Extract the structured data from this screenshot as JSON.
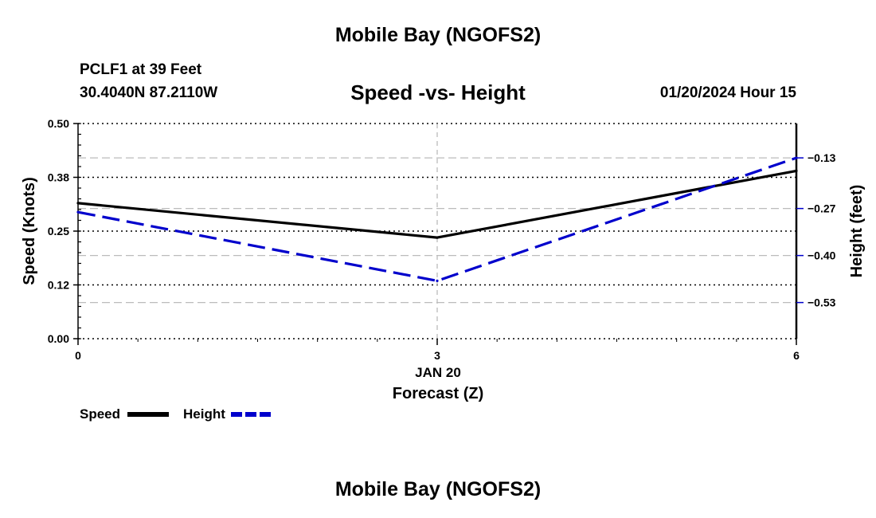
{
  "header": {
    "title": "Mobile Bay (NGOFS2)",
    "station": "PCLF1 at 39 Feet",
    "coordinates": "30.4040N  87.2110W",
    "subtitle": "Speed -vs- Height",
    "datestamp": "01/20/2024 Hour 15",
    "footer_title": "Mobile Bay (NGOFS2)"
  },
  "chart_data": {
    "type": "line",
    "title": "Speed -vs- Height",
    "xlabel": "Forecast (Z)",
    "x_date_label": "JAN 20",
    "ylabel": "Speed (Knots)",
    "y2label": "Height (feet)",
    "x": [
      0,
      3,
      6
    ],
    "x_ticks": [
      0,
      3,
      6
    ],
    "x_tick_labels": [
      "0",
      "3",
      "6"
    ],
    "xlim": [
      0,
      6
    ],
    "ylim": [
      0,
      0.5
    ],
    "y_ticks": [
      0.0,
      0.125,
      0.25,
      0.375,
      0.5
    ],
    "y_tick_labels": [
      "0.00",
      "0.12",
      "0.25",
      "0.38",
      "0.50"
    ],
    "y2lim": [
      -0.63,
      -0.035
    ],
    "y2_ticks": [
      -0.53,
      -0.4,
      -0.27,
      -0.13
    ],
    "y2_tick_labels": [
      "−0.53",
      "−0.40",
      "−0.27",
      "−0.13"
    ],
    "grid": true,
    "legend_position": "bottom-left",
    "series": [
      {
        "name": "Speed",
        "axis": "left",
        "color": "#000000",
        "dash": "solid",
        "values": [
          0.315,
          0.235,
          0.39
        ]
      },
      {
        "name": "Height",
        "axis": "right",
        "color": "#0000cc",
        "dash": "dashed",
        "values": [
          -0.28,
          -0.47,
          -0.13
        ]
      }
    ]
  }
}
